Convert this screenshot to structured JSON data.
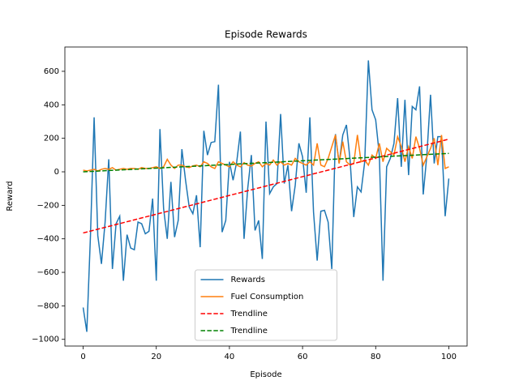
{
  "chart_data": {
    "type": "line",
    "title": "Episode Rewards",
    "x_label": "Episode",
    "y_label": "Reward",
    "x": [
      0,
      1,
      2,
      3,
      4,
      5,
      6,
      7,
      8,
      9,
      10,
      11,
      12,
      13,
      14,
      15,
      16,
      17,
      18,
      19,
      20,
      21,
      22,
      23,
      24,
      25,
      26,
      27,
      28,
      29,
      30,
      31,
      32,
      33,
      34,
      35,
      36,
      37,
      38,
      39,
      40,
      41,
      42,
      43,
      44,
      45,
      46,
      47,
      48,
      49,
      50,
      51,
      52,
      53,
      54,
      55,
      56,
      57,
      58,
      59,
      60,
      61,
      62,
      63,
      64,
      65,
      66,
      67,
      68,
      69,
      70,
      71,
      72,
      73,
      74,
      75,
      76,
      77,
      78,
      79,
      80,
      81,
      82,
      83,
      84,
      85,
      86,
      87,
      88,
      89,
      90,
      91,
      92,
      93,
      94,
      95,
      96,
      97,
      98,
      99,
      100
    ],
    "series": [
      {
        "name": "Rewards",
        "color": "#1f77b4",
        "linestyle": "solid",
        "values": [
          -810,
          -955,
          -380,
          325,
          -380,
          -550,
          -300,
          75,
          -580,
          -310,
          -265,
          -650,
          -375,
          -455,
          -465,
          -300,
          -310,
          -370,
          -355,
          -160,
          -650,
          255,
          -220,
          -400,
          -60,
          -390,
          -290,
          135,
          -50,
          -210,
          -250,
          -140,
          -450,
          245,
          100,
          175,
          180,
          520,
          -360,
          -290,
          60,
          -50,
          60,
          240,
          -400,
          -100,
          100,
          -350,
          -290,
          -520,
          300,
          -130,
          -90,
          -70,
          345,
          -70,
          40,
          -235,
          -80,
          170,
          90,
          -125,
          325,
          -240,
          -530,
          -235,
          -230,
          -300,
          -580,
          225,
          50,
          220,
          280,
          70,
          -270,
          -90,
          -120,
          60,
          665,
          370,
          310,
          100,
          -650,
          30,
          80,
          170,
          440,
          30,
          430,
          -20,
          390,
          370,
          510,
          -135,
          100,
          460,
          50,
          210,
          210,
          -265,
          -40
        ]
      },
      {
        "name": "Fuel Consumption",
        "color": "#ff7f0e",
        "linestyle": "solid",
        "values": [
          10,
          5,
          10,
          15,
          5,
          15,
          20,
          15,
          25,
          10,
          15,
          20,
          15,
          20,
          20,
          15,
          25,
          20,
          20,
          25,
          30,
          20,
          30,
          75,
          40,
          20,
          40,
          40,
          30,
          25,
          35,
          40,
          30,
          60,
          50,
          30,
          20,
          60,
          50,
          40,
          30,
          60,
          40,
          30,
          55,
          40,
          35,
          50,
          60,
          30,
          50,
          40,
          70,
          40,
          60,
          40,
          50,
          40,
          80,
          60,
          50,
          40,
          60,
          40,
          170,
          40,
          30,
          80,
          150,
          220,
          50,
          180,
          60,
          40,
          50,
          220,
          60,
          70,
          40,
          100,
          80,
          170,
          60,
          140,
          120,
          100,
          210,
          150,
          60,
          150,
          80,
          210,
          140,
          40,
          90,
          140,
          200,
          40,
          220,
          20,
          30
        ]
      },
      {
        "name": "Trendline",
        "color": "#ff0000",
        "linestyle": "dashed",
        "x": [
          0,
          100
        ],
        "values": [
          -365,
          195
        ]
      },
      {
        "name": "Trendline",
        "color": "#008000",
        "linestyle": "dashed",
        "x": [
          0,
          100
        ],
        "values": [
          0,
          110
        ]
      }
    ],
    "xlim": [
      -5,
      105
    ],
    "ylim": [
      -1040,
      745
    ],
    "xticks": [
      0,
      20,
      40,
      60,
      80,
      100
    ],
    "yticks": [
      {
        "value": -1000,
        "label": "−1000"
      },
      {
        "value": -800,
        "label": "−800"
      },
      {
        "value": -600,
        "label": "−600"
      },
      {
        "value": -400,
        "label": "−400"
      },
      {
        "value": -200,
        "label": "−200"
      },
      0,
      200,
      400,
      600
    ],
    "legend": "lower center",
    "grid": false
  }
}
